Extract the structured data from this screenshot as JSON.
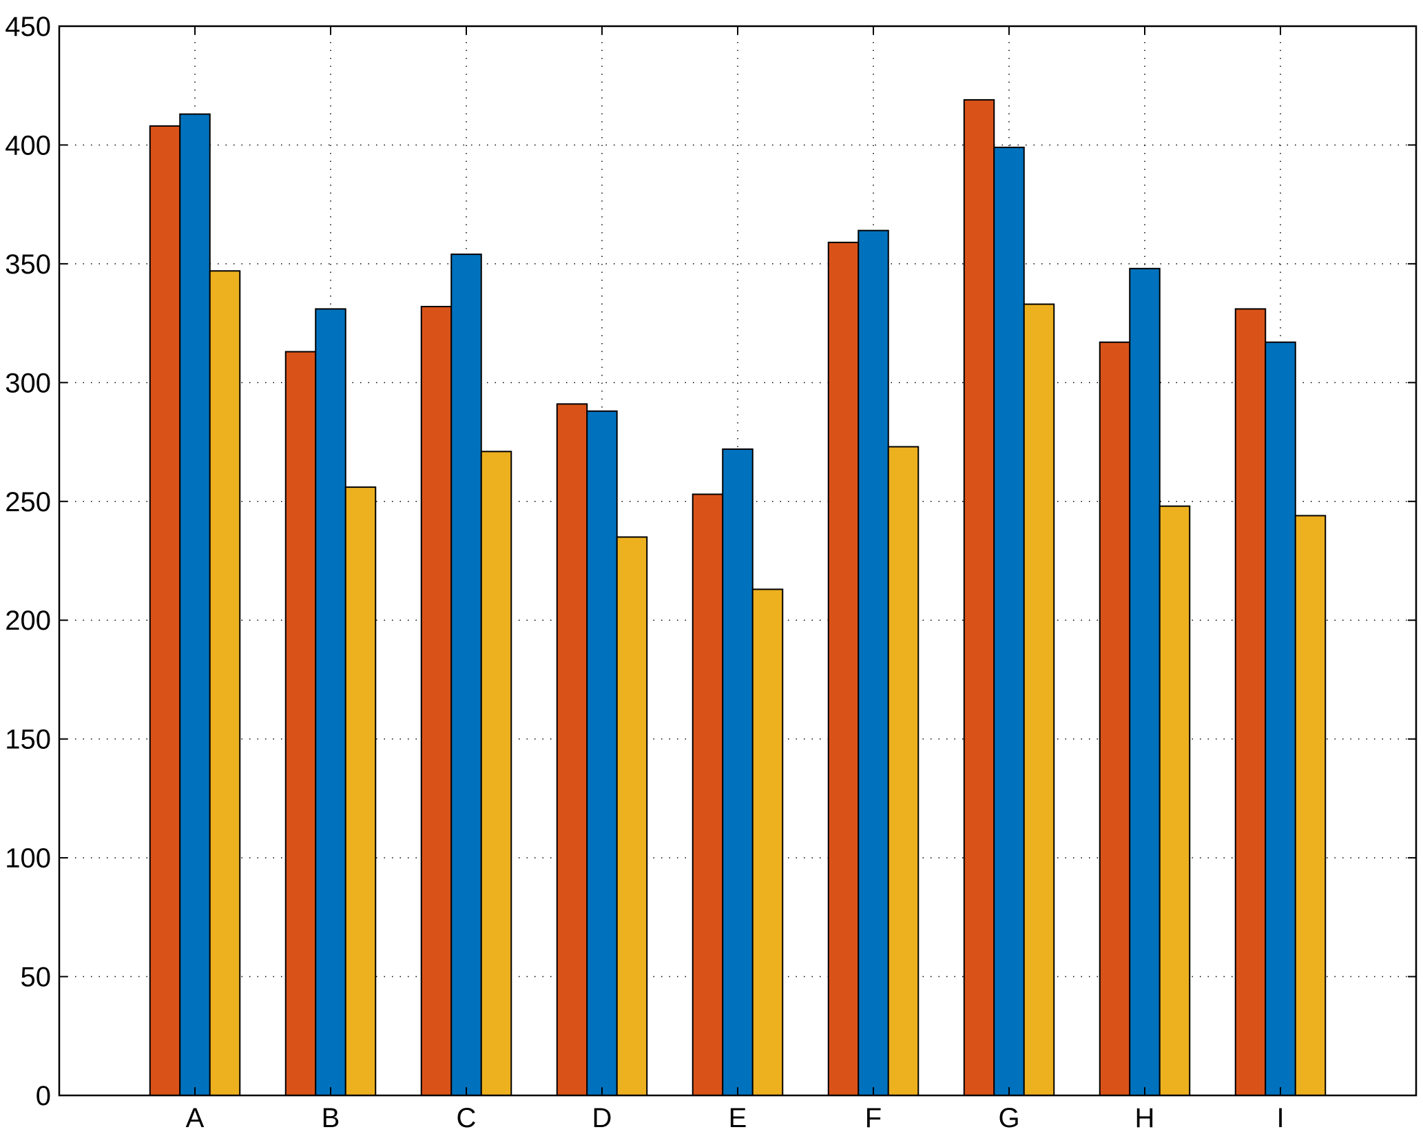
{
  "chart_data": {
    "type": "bar",
    "title": "",
    "xlabel": "",
    "ylabel": "",
    "categories": [
      "A",
      "B",
      "C",
      "D",
      "E",
      "F",
      "G",
      "H",
      "I"
    ],
    "series": [
      {
        "color": "#D95319",
        "values": [
          408,
          313,
          332,
          291,
          253,
          359,
          419,
          317,
          331
        ]
      },
      {
        "color": "#0072BD",
        "values": [
          413,
          331,
          354,
          288,
          272,
          364,
          399,
          348,
          317
        ]
      },
      {
        "color": "#EDB120",
        "values": [
          347,
          256,
          271,
          235,
          213,
          273,
          333,
          248,
          244
        ]
      }
    ],
    "ylim": [
      0,
      450
    ],
    "yticks": [
      "0",
      "50",
      "100",
      "150",
      "200",
      "250",
      "300",
      "350",
      "400",
      "450"
    ],
    "grid": true,
    "legend": false
  }
}
